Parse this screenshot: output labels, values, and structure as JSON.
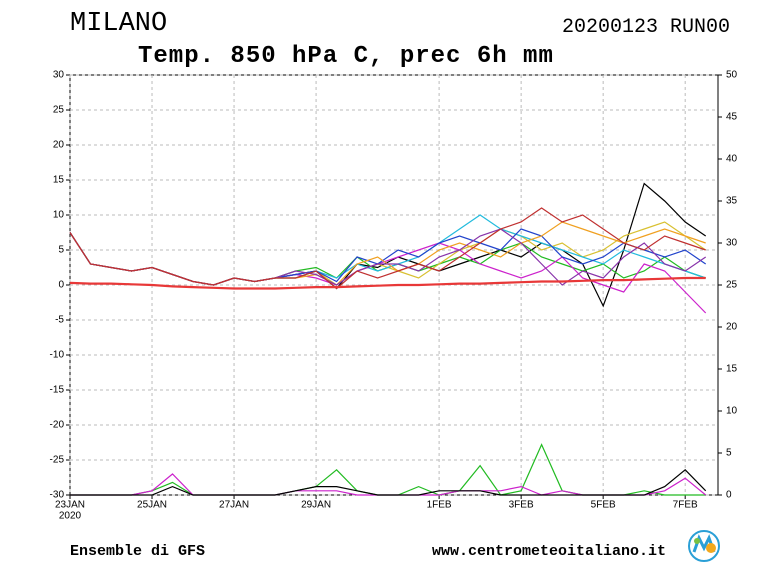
{
  "chart_data": {
    "type": "line",
    "title": "MILANO",
    "run_label": "20200123 RUN00",
    "subtitle": "Temp. 850 hPa C, prec 6h mm",
    "footer_left": "Ensemble di GFS",
    "footer_right": "www.centrometeoitaliano.it",
    "year_label": "2020",
    "x": [
      0,
      0.5,
      1,
      1.5,
      2,
      2.5,
      3,
      3.5,
      4,
      4.5,
      5,
      5.5,
      6,
      6.5,
      7,
      7.5,
      8,
      8.5,
      9,
      9.5,
      10,
      10.5,
      11,
      11.5,
      12,
      12.5,
      13,
      13.5,
      14,
      14.5,
      15,
      15.5
    ],
    "xlim": [
      0,
      15.8
    ],
    "xticks": [
      {
        "value": 0,
        "label": "23JAN"
      },
      {
        "value": 2,
        "label": "25JAN"
      },
      {
        "value": 4,
        "label": "27JAN"
      },
      {
        "value": 6,
        "label": "29JAN"
      },
      {
        "value": 9,
        "label": "1FEB"
      },
      {
        "value": 11,
        "label": "3FEB"
      },
      {
        "value": 13,
        "label": "5FEB"
      },
      {
        "value": 15,
        "label": "7FEB"
      }
    ],
    "ylim": [
      -30,
      30
    ],
    "yticks": [
      -30,
      -25,
      -20,
      -15,
      -10,
      -5,
      0,
      5,
      10,
      15,
      20,
      25,
      30
    ],
    "y2lim": [
      0,
      50
    ],
    "y2ticks": [
      0,
      5,
      10,
      15,
      20,
      25,
      30,
      35,
      40,
      45,
      50
    ],
    "grid": true,
    "series": [
      {
        "color": "#000000",
        "values": [
          7.5,
          3,
          2.5,
          2,
          2.5,
          1.5,
          0.5,
          0,
          1,
          0.5,
          1,
          1.5,
          2,
          -0.5,
          3,
          2.5,
          4,
          3,
          2,
          3,
          4,
          5,
          4,
          6,
          5,
          3,
          -3,
          5,
          14.5,
          12,
          9,
          7
        ]
      },
      {
        "color": "#22bb22",
        "values": [
          7.5,
          3,
          2.5,
          2,
          2.5,
          1.5,
          0.5,
          0,
          1,
          0.5,
          1,
          2,
          2.5,
          1,
          4,
          2,
          3,
          2,
          3,
          4,
          3,
          5,
          6,
          4,
          3,
          2,
          3,
          1,
          2,
          4,
          2,
          1
        ]
      },
      {
        "color": "#d8c030",
        "values": [
          7.5,
          3,
          2.5,
          2,
          2.5,
          1.5,
          0.5,
          0,
          1,
          0.5,
          1,
          1,
          2,
          0,
          2,
          3,
          2,
          1,
          3,
          5,
          6,
          8,
          7,
          5,
          6,
          4,
          5,
          7,
          8,
          9,
          7,
          5
        ]
      },
      {
        "color": "#cc22cc",
        "values": [
          7.5,
          3,
          2.5,
          2,
          2.5,
          1.5,
          0.5,
          0,
          1,
          0.5,
          1,
          1.5,
          1,
          0,
          2,
          3,
          4,
          5,
          6,
          5,
          3,
          2,
          1,
          2,
          4,
          1,
          0,
          -1,
          3,
          2,
          -1,
          -4
        ]
      },
      {
        "color": "#22bbdd",
        "values": [
          7.5,
          3,
          2.5,
          2,
          2.5,
          1.5,
          0.5,
          0,
          1,
          0.5,
          1,
          1,
          2,
          1,
          3,
          2,
          3,
          4,
          6,
          8,
          10,
          8,
          7,
          6,
          5,
          4,
          3,
          5,
          4,
          3,
          2,
          1
        ]
      },
      {
        "color": "#2244cc",
        "values": [
          7.5,
          3,
          2.5,
          2,
          2.5,
          1.5,
          0.5,
          0,
          1,
          0.5,
          1,
          1.5,
          2,
          0.5,
          4,
          3,
          5,
          4,
          6,
          7,
          6,
          5,
          8,
          7,
          4,
          3,
          4,
          6,
          5,
          4,
          5,
          3
        ]
      },
      {
        "color": "#f0a020",
        "values": [
          7.5,
          3,
          2.5,
          2,
          2.5,
          1.5,
          0.5,
          0,
          1,
          0.5,
          1,
          1,
          1.5,
          0,
          3,
          4,
          2,
          3,
          5,
          6,
          5,
          4,
          6,
          7,
          9,
          8,
          7,
          6,
          7,
          8,
          7,
          6
        ]
      },
      {
        "color": "#8833aa",
        "values": [
          7.5,
          3,
          2.5,
          2,
          2.5,
          1.5,
          0.5,
          0,
          1,
          0.5,
          1,
          2,
          1.5,
          0,
          2,
          3,
          3,
          2,
          4,
          5,
          7,
          8,
          6,
          3,
          0,
          2,
          1,
          4,
          6,
          3,
          2,
          4
        ]
      },
      {
        "color": "#c03030",
        "values": [
          7.5,
          3,
          2.5,
          2,
          2.5,
          1.5,
          0.5,
          0,
          1,
          0.5,
          1,
          1,
          2,
          -0.5,
          2,
          1,
          2,
          3,
          2,
          4,
          6,
          8,
          9,
          11,
          9,
          10,
          8,
          6,
          5,
          7,
          6,
          5
        ]
      },
      {
        "color": "#e83838",
        "values": [
          0.3,
          0.2,
          0.2,
          0.1,
          0,
          -0.2,
          -0.3,
          -0.4,
          -0.5,
          -0.5,
          -0.5,
          -0.4,
          -0.3,
          -0.3,
          -0.2,
          -0.1,
          0,
          0,
          0.1,
          0.2,
          0.2,
          0.3,
          0.4,
          0.5,
          0.5,
          0.6,
          0.7,
          0.7,
          0.8,
          0.9,
          1,
          1
        ]
      },
      {
        "color": "#22bb22",
        "axis": "y2",
        "values": [
          0,
          0,
          0,
          0,
          0.5,
          1.5,
          0,
          0,
          0,
          0,
          0,
          0.5,
          1,
          3,
          0.5,
          0,
          0,
          1,
          0,
          0.5,
          3.5,
          0,
          0.5,
          6,
          0.5,
          0,
          0,
          0,
          0.5,
          0,
          0,
          0
        ]
      },
      {
        "color": "#cc22cc",
        "axis": "y2",
        "values": [
          0,
          0,
          0,
          0,
          0.5,
          2.5,
          0,
          0,
          0,
          0,
          0,
          0.5,
          0.5,
          0.5,
          0,
          0,
          0,
          0,
          0,
          0.5,
          0.5,
          0.5,
          1,
          0,
          0.5,
          0,
          0,
          0,
          0,
          0.5,
          2,
          0
        ]
      },
      {
        "color": "#000000",
        "axis": "y2",
        "values": [
          0,
          0,
          0,
          0,
          0,
          1,
          0,
          0,
          0,
          0,
          0,
          0.5,
          1,
          1,
          0.5,
          0,
          0,
          0,
          0.5,
          0.5,
          0.5,
          0,
          0,
          0,
          0,
          0,
          0,
          0,
          0,
          1,
          3,
          0.5
        ]
      }
    ]
  }
}
